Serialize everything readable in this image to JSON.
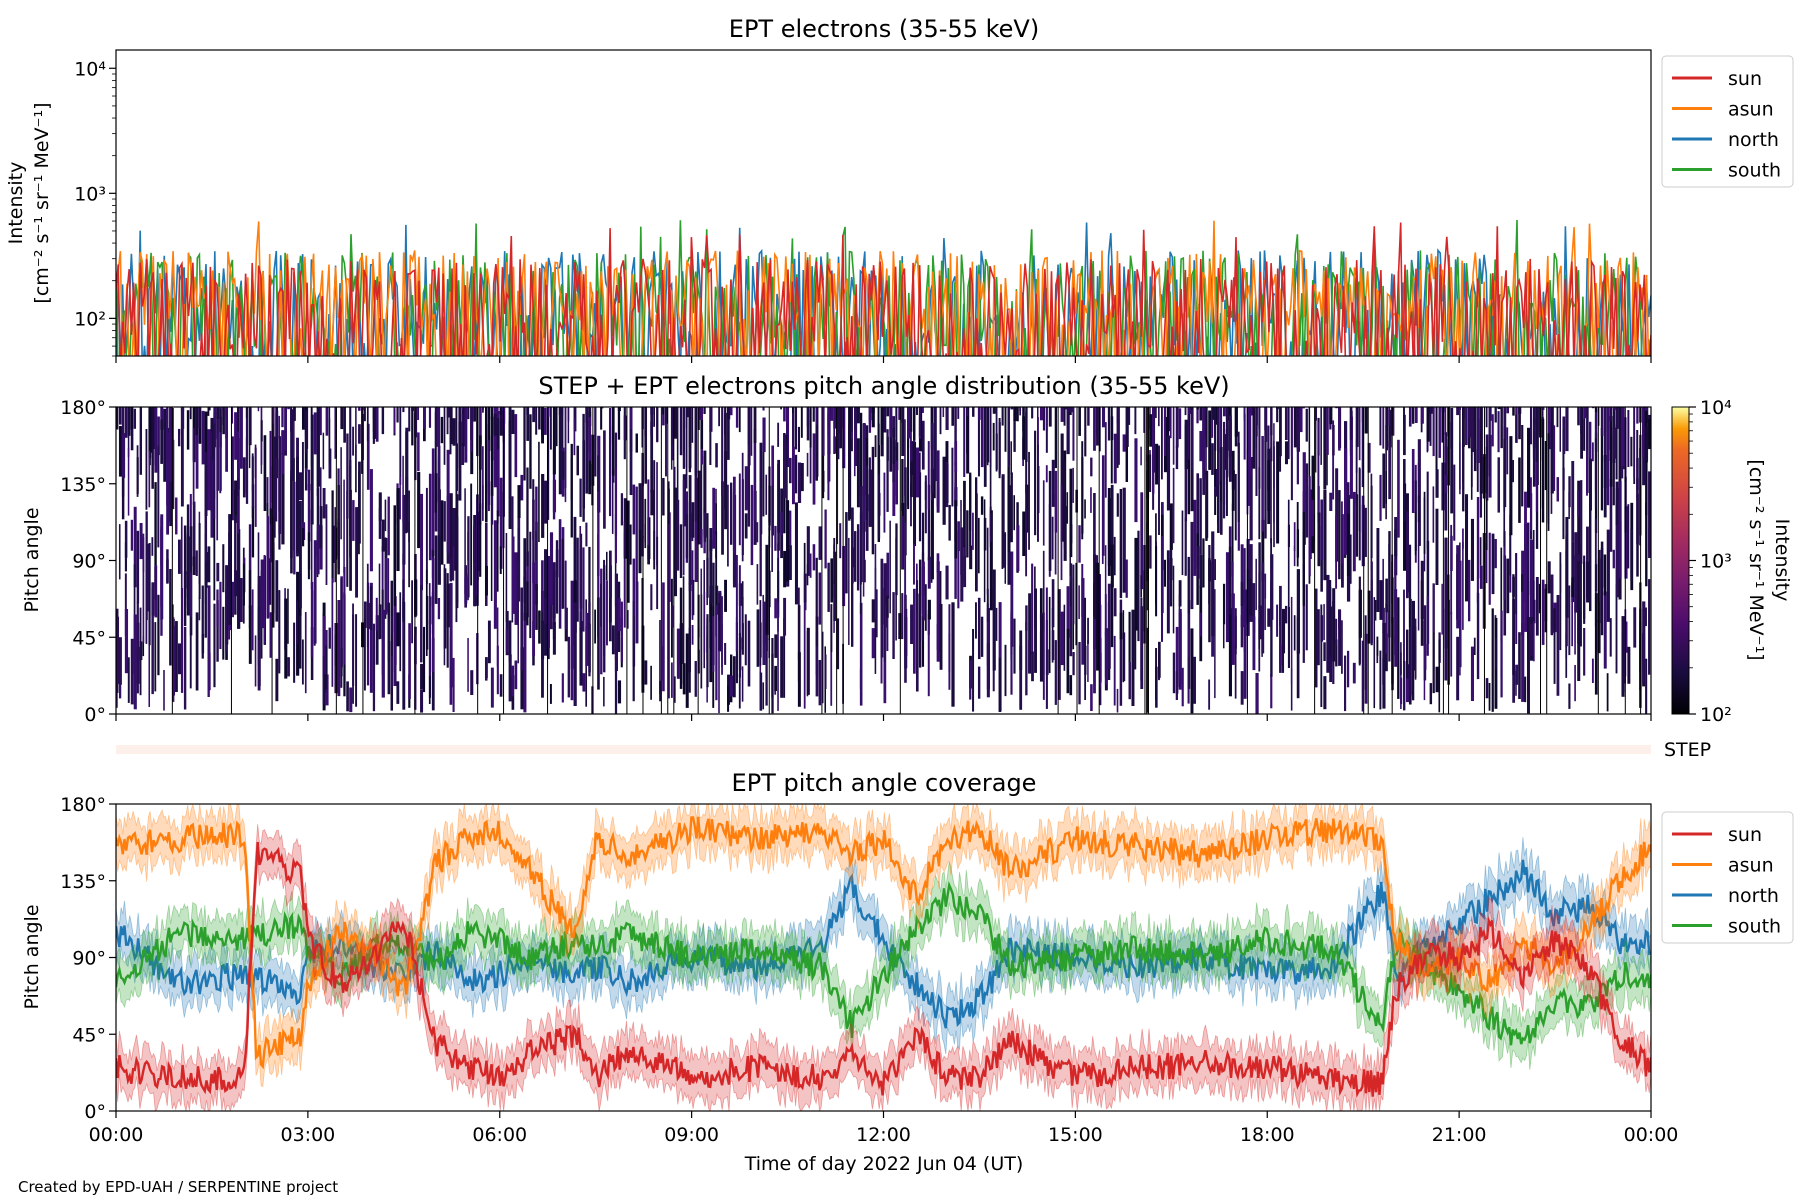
{
  "credit": "Created by EPD-UAH / SERPENTINE project",
  "colors": {
    "sun": "#d62728",
    "asun": "#ff7f0e",
    "north": "#1f77b4",
    "south": "#2ca02c"
  },
  "chart_data": [
    {
      "type": "line",
      "title": "EPT electrons (35-55 keV)",
      "ylabel_line1": "Intensity",
      "ylabel_line2": "[cm⁻² s⁻¹ sr⁻¹ MeV⁻¹]",
      "yscale": "log",
      "ylim": [
        50,
        14000
      ],
      "ytick_labels": [
        "10²",
        "10³",
        "10⁴"
      ],
      "ytick_values": [
        100,
        1000,
        10000
      ],
      "xlim_hours": [
        0,
        24
      ],
      "legend_position": "outside-right-top",
      "series": [
        {
          "name": "sun",
          "color": "#d62728",
          "typical_range": [
            50,
            300
          ],
          "peak": 600
        },
        {
          "name": "asun",
          "color": "#ff7f0e",
          "typical_range": [
            80,
            350
          ],
          "peak": 700
        },
        {
          "name": "north",
          "color": "#1f77b4",
          "typical_range": [
            60,
            350
          ],
          "peak": 600
        },
        {
          "name": "south",
          "color": "#2ca02c",
          "typical_range": [
            60,
            350
          ],
          "peak": 620
        }
      ]
    },
    {
      "type": "heatmap",
      "title": "STEP + EPT electrons pitch angle distribution (35-55 keV)",
      "ylabel": "Pitch angle",
      "ylim": [
        0,
        180
      ],
      "ytick_labels": [
        "0°",
        "45°",
        "90°",
        "135°",
        "180°"
      ],
      "ytick_values": [
        0,
        45,
        90,
        135,
        180
      ],
      "xlim_hours": [
        0,
        24
      ],
      "colorbar": {
        "label_line1": "Intensity",
        "label_line2": "[cm⁻² s⁻¹ sr⁻¹ MeV⁻¹]",
        "scale": "log",
        "range": [
          100,
          10000
        ],
        "tick_labels": [
          "10²",
          "10³",
          "10⁴"
        ],
        "colormap": "inferno"
      }
    },
    {
      "type": "bar",
      "label": "STEP"
    },
    {
      "type": "line",
      "title": "EPT pitch angle coverage",
      "ylabel": "Pitch angle",
      "ylim": [
        0,
        180
      ],
      "ytick_labels": [
        "0°",
        "45°",
        "90°",
        "135°",
        "180°"
      ],
      "ytick_values": [
        0,
        45,
        90,
        135,
        180
      ],
      "xlabel": "Time of day 2022 Jun 04 (UT)",
      "x_tick_labels": [
        "00:00",
        "03:00",
        "06:00",
        "09:00",
        "12:00",
        "15:00",
        "18:00",
        "21:00",
        "00:00"
      ],
      "x_tick_hours": [
        0,
        3,
        6,
        9,
        12,
        15,
        18,
        21,
        24
      ],
      "legend_position": "outside-right-top",
      "series": [
        {
          "name": "sun",
          "color": "#d62728",
          "hours": [
            0,
            1,
            2,
            2.2,
            2.9,
            3,
            3.5,
            4,
            4.5,
            5,
            5.5,
            6,
            6.5,
            7.2,
            7.5,
            8,
            9,
            10,
            11,
            11.5,
            12,
            12.5,
            13,
            13.5,
            14,
            15,
            16,
            17,
            18,
            19,
            19.8,
            20,
            20.5,
            21,
            21.5,
            22,
            22.5,
            23,
            23.5,
            24
          ],
          "angles": [
            25,
            20,
            18,
            150,
            140,
            100,
            75,
            90,
            110,
            40,
            25,
            20,
            35,
            45,
            20,
            35,
            20,
            25,
            20,
            30,
            15,
            45,
            20,
            20,
            40,
            20,
            25,
            28,
            25,
            20,
            15,
            70,
            95,
            90,
            105,
            80,
            100,
            85,
            45,
            25
          ]
        },
        {
          "name": "asun",
          "color": "#ff7f0e",
          "hours": [
            0,
            1,
            2,
            2.2,
            2.9,
            3,
            3.5,
            4,
            4.5,
            5,
            5.5,
            6,
            6.5,
            7.2,
            7.5,
            8,
            9,
            10,
            11,
            11.5,
            12,
            12.5,
            13,
            13.5,
            14,
            15,
            16,
            17,
            18,
            19,
            19.8,
            20,
            20.5,
            21,
            21.5,
            22,
            22.5,
            23,
            23.5,
            24
          ],
          "angles": [
            155,
            160,
            162,
            32,
            45,
            75,
            105,
            95,
            70,
            145,
            160,
            165,
            140,
            100,
            160,
            150,
            165,
            160,
            165,
            150,
            160,
            125,
            160,
            165,
            140,
            160,
            155,
            150,
            160,
            165,
            160,
            100,
            80,
            90,
            75,
            100,
            85,
            105,
            135,
            155
          ]
        },
        {
          "name": "north",
          "color": "#1f77b4",
          "hours": [
            0,
            1,
            2,
            2.2,
            2.9,
            3,
            3.5,
            4,
            4.5,
            5,
            5.5,
            6,
            6.5,
            7.2,
            7.5,
            8,
            9,
            10,
            11,
            11.5,
            12,
            12.5,
            13,
            13.5,
            14,
            15,
            16,
            17,
            18,
            19,
            19.8,
            20,
            20.5,
            21,
            21.5,
            22,
            22.5,
            23,
            23.5,
            24
          ],
          "angles": [
            105,
            75,
            80,
            78,
            70,
            90,
            100,
            85,
            80,
            95,
            75,
            80,
            90,
            80,
            85,
            75,
            90,
            85,
            95,
            130,
            100,
            75,
            55,
            65,
            95,
            90,
            85,
            90,
            80,
            85,
            130,
            80,
            95,
            110,
            125,
            140,
            115,
            120,
            100,
            100
          ]
        },
        {
          "name": "south",
          "color": "#2ca02c",
          "hours": [
            0,
            1,
            2,
            2.2,
            2.9,
            3,
            3.5,
            4,
            4.5,
            5,
            5.5,
            6,
            6.5,
            7.2,
            7.5,
            8,
            9,
            10,
            11,
            11.5,
            12,
            12.5,
            13,
            13.5,
            14,
            15,
            16,
            17,
            18,
            19,
            19.8,
            20,
            20.5,
            21,
            21.5,
            22,
            22.5,
            23,
            23.5,
            24
          ],
          "angles": [
            75,
            105,
            100,
            102,
            110,
            90,
            80,
            95,
            100,
            85,
            105,
            100,
            90,
            100,
            95,
            105,
            90,
            95,
            85,
            50,
            80,
            105,
            125,
            115,
            85,
            90,
            95,
            90,
            100,
            95,
            50,
            100,
            85,
            70,
            55,
            40,
            65,
            60,
            80,
            80
          ]
        }
      ]
    }
  ]
}
